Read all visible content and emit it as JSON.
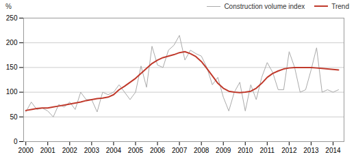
{
  "chart_data": {
    "type": "line",
    "title": "",
    "ylabel": "%",
    "x": [
      2000.0,
      2000.25,
      2000.5,
      2000.75,
      2001.0,
      2001.25,
      2001.5,
      2001.75,
      2002.0,
      2002.25,
      2002.5,
      2002.75,
      2003.0,
      2003.25,
      2003.5,
      2003.75,
      2004.0,
      2004.25,
      2004.5,
      2004.75,
      2005.0,
      2005.25,
      2005.5,
      2005.75,
      2006.0,
      2006.25,
      2006.5,
      2006.75,
      2007.0,
      2007.25,
      2007.5,
      2007.75,
      2008.0,
      2008.25,
      2008.5,
      2008.75,
      2009.0,
      2009.25,
      2009.5,
      2009.75,
      2010.0,
      2010.25,
      2010.5,
      2010.75,
      2011.0,
      2011.25,
      2011.5,
      2011.75,
      2012.0,
      2012.25,
      2012.5,
      2012.75,
      2013.0,
      2013.25,
      2013.5,
      2013.75,
      2014.0,
      2014.25
    ],
    "series": [
      {
        "name": "Construction volume index",
        "color": "#aaaaaa",
        "values": [
          60,
          80,
          65,
          68,
          62,
          50,
          75,
          70,
          80,
          65,
          100,
          85,
          85,
          60,
          100,
          95,
          100,
          115,
          100,
          85,
          100,
          153,
          110,
          193,
          155,
          150,
          185,
          195,
          215,
          165,
          185,
          178,
          173,
          150,
          115,
          130,
          90,
          62,
          100,
          120,
          62,
          115,
          85,
          130,
          160,
          140,
          105,
          105,
          182,
          150,
          100,
          105,
          145,
          190,
          100,
          105,
          100,
          105
        ]
      },
      {
        "name": "Trend",
        "color": "#c0392b",
        "values": [
          63,
          65,
          67,
          68,
          68,
          70,
          72,
          74,
          76,
          78,
          80,
          83,
          85,
          87,
          88,
          90,
          95,
          105,
          112,
          120,
          128,
          138,
          148,
          158,
          165,
          170,
          173,
          176,
          180,
          182,
          178,
          172,
          162,
          148,
          133,
          118,
          108,
          102,
          100,
          99,
          100,
          102,
          108,
          118,
          130,
          138,
          143,
          147,
          149,
          150,
          150,
          150,
          150,
          149,
          148,
          147,
          146,
          145
        ]
      }
    ],
    "xlim": [
      1999.9,
      2014.5
    ],
    "xticks": [
      2000,
      2001,
      2002,
      2003,
      2004,
      2005,
      2006,
      2007,
      2008,
      2009,
      2010,
      2011,
      2012,
      2013,
      2014
    ],
    "ylim": [
      0,
      250
    ],
    "yticks": [
      0,
      50,
      100,
      150,
      200,
      250
    ],
    "grid": true,
    "legend": "top"
  }
}
